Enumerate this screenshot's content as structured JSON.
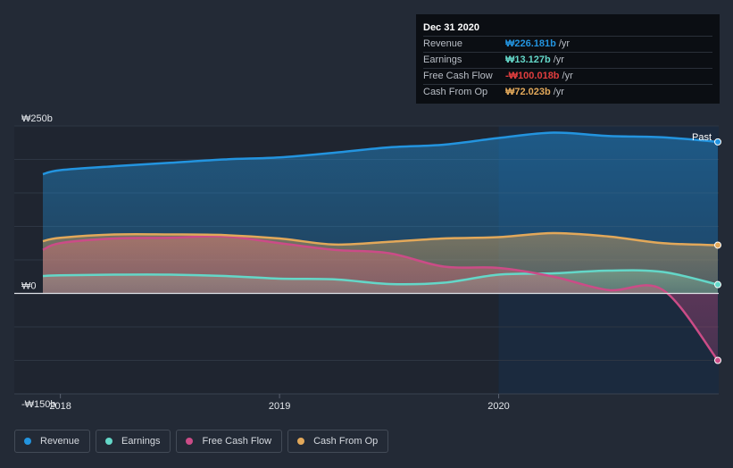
{
  "chart_data": {
    "type": "area",
    "currency_unit": "₩ billions",
    "x": [
      2017.92,
      2018.0,
      2018.25,
      2018.5,
      2018.75,
      2019.0,
      2019.25,
      2019.5,
      2019.75,
      2020.0,
      2020.25,
      2020.5,
      2020.75,
      2021.0
    ],
    "series": [
      {
        "name": "Revenue",
        "color": "#2394df",
        "values": [
          178,
          184,
          190,
          195,
          200,
          203,
          210,
          218,
          222,
          232,
          240,
          235,
          233,
          226.181
        ]
      },
      {
        "name": "Earnings",
        "color": "#64d7c8",
        "values": [
          26,
          27,
          28,
          28,
          26,
          22,
          21,
          14,
          16,
          28,
          30,
          34,
          32,
          13.127
        ]
      },
      {
        "name": "Free Cash Flow",
        "color": "#cb4c87",
        "values": [
          65,
          75,
          82,
          83,
          85,
          75,
          65,
          60,
          40,
          38,
          25,
          5,
          5,
          -100.018
        ]
      },
      {
        "name": "Cash From Op",
        "color": "#e2a85a",
        "values": [
          78,
          83,
          88,
          88,
          87,
          82,
          73,
          77,
          82,
          84,
          90,
          85,
          75,
          72.023
        ]
      }
    ],
    "y_ticks": [
      "₩250b",
      "₩0",
      "-₩150b"
    ],
    "y_tick_values": [
      250,
      0,
      -150
    ],
    "x_ticks": [
      "2018",
      "2019",
      "2020"
    ],
    "x_tick_values": [
      2018,
      2019,
      2020
    ],
    "xlim": [
      2017.92,
      2021.0
    ],
    "ylim": [
      -150,
      250
    ],
    "past_label": "Past",
    "forecast_start": 2020.0
  },
  "tooltip": {
    "title": "Dec 31 2020",
    "unit": "/yr",
    "rows": [
      {
        "label": "Revenue",
        "value": "₩226.181b",
        "color": "#2394df"
      },
      {
        "label": "Earnings",
        "value": "₩13.127b",
        "color": "#64d7c8"
      },
      {
        "label": "Free Cash Flow",
        "value": "-₩100.018b",
        "color": "#e23e3e"
      },
      {
        "label": "Cash From Op",
        "value": "₩72.023b",
        "color": "#e2a85a"
      }
    ]
  },
  "legend": [
    {
      "label": "Revenue",
      "color": "#2394df"
    },
    {
      "label": "Earnings",
      "color": "#64d7c8"
    },
    {
      "label": "Free Cash Flow",
      "color": "#cb4c87"
    },
    {
      "label": "Cash From Op",
      "color": "#e2a85a"
    }
  ]
}
